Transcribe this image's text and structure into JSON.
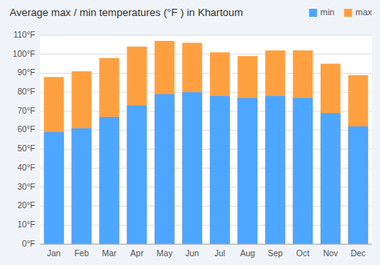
{
  "chart_data": {
    "type": "bar",
    "title": "Average max / min temperatures (°F ) in Khartoum",
    "categories": [
      "Jan",
      "Feb",
      "Mar",
      "Apr",
      "May",
      "Jun",
      "Jul",
      "Aug",
      "Sep",
      "Oct",
      "Nov",
      "Dec"
    ],
    "series": [
      {
        "name": "min",
        "color": "#4da6ff",
        "values": [
          59,
          61,
          67,
          73,
          79,
          80,
          78,
          77,
          78,
          77,
          69,
          62
        ]
      },
      {
        "name": "max",
        "color": "#ffa040",
        "values": [
          88,
          91,
          98,
          104,
          107,
          106,
          101,
          99,
          102,
          102,
          95,
          89
        ]
      }
    ],
    "ylim": [
      0,
      110
    ],
    "yticks": [
      {
        "value": 0,
        "label": "0°F"
      },
      {
        "value": 10,
        "label": "10°F"
      },
      {
        "value": 20,
        "label": "20°F"
      },
      {
        "value": 30,
        "label": "30°F"
      },
      {
        "value": 40,
        "label": "40°F"
      },
      {
        "value": 50,
        "label": "50°F"
      },
      {
        "value": 60,
        "label": "60°F"
      },
      {
        "value": 70,
        "label": "70°F"
      },
      {
        "value": 80,
        "label": "80°F"
      },
      {
        "value": 90,
        "label": "90°F"
      },
      {
        "value": 100,
        "label": "100°F"
      },
      {
        "value": 110,
        "label": "110°F"
      }
    ],
    "grid": true,
    "legend": "upper right"
  }
}
